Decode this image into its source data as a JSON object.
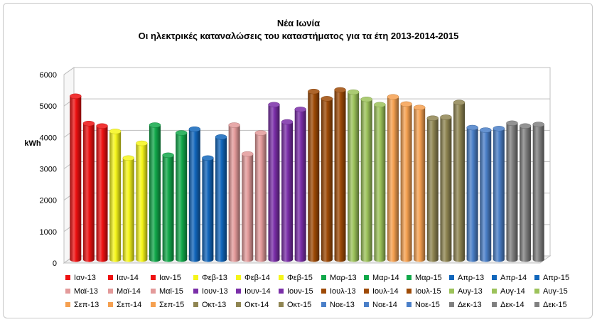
{
  "chart_data": {
    "type": "bar",
    "title": "Νέα Ιωνία",
    "subtitle": "Οι ηλεκτρικές καταναλώσεις του καταστήματος για τα έτη 2013-2014-2015",
    "ylabel": "kWh",
    "ylim": [
      0,
      6000
    ],
    "yticks": [
      "0",
      "1000",
      "2000",
      "3000",
      "4000",
      "5000",
      "6000"
    ],
    "grid": true,
    "legend_position": "bottom",
    "categories": [
      "Ιαν-13",
      "Ιαν-14",
      "Ιαν-15",
      "Φεβ-13",
      "Φεβ-14",
      "Φεβ-15",
      "Μαρ-13",
      "Μαρ-14",
      "Μαρ-15",
      "Απρ-13",
      "Απρ-14",
      "Απρ-15",
      "Μαϊ-13",
      "Μαϊ-14",
      "Μαϊ-15",
      "Ιουν-13",
      "Ιουν-14",
      "Ιουν-15",
      "Ιουλ-13",
      "Ιουλ-14",
      "Ιουλ-15",
      "Αυγ-13",
      "Αυγ-14",
      "Αυγ-15",
      "Σεπ-13",
      "Σεπ-14",
      "Σεπ-15",
      "Οκτ-13",
      "Οκτ-14",
      "Οκτ-15",
      "Νοε-13",
      "Νοε-14",
      "Νοε-15",
      "Δεκ-13",
      "Δεκ-14",
      "Δεκ-15"
    ],
    "values": [
      5200,
      4330,
      4250,
      4080,
      3230,
      3700,
      4280,
      3320,
      4030,
      4150,
      3230,
      3900,
      4280,
      3360,
      4030,
      4930,
      4380,
      4780,
      5350,
      5120,
      5400,
      5330,
      5100,
      4930,
      5180,
      4950,
      4840,
      4500,
      4530,
      5000,
      4200,
      4120,
      4170,
      4340,
      4250,
      4300
    ],
    "colors": [
      "#ee1111",
      "#ee1111",
      "#ee1111",
      "#f5f51a",
      "#f5f51a",
      "#f5f51a",
      "#11a84a",
      "#11a84a",
      "#11a84a",
      "#1166bb",
      "#1166bb",
      "#1166bb",
      "#e39a9a",
      "#e39a9a",
      "#e39a9a",
      "#7a2ea8",
      "#7a2ea8",
      "#7a2ea8",
      "#9e4a06",
      "#9e4a06",
      "#9e4a06",
      "#9cc25a",
      "#9cc25a",
      "#9cc25a",
      "#f5a050",
      "#f5a050",
      "#f5a050",
      "#8f8552",
      "#8f8552",
      "#8f8552",
      "#4a7fc8",
      "#4a7fc8",
      "#4a7fc8",
      "#808080",
      "#808080",
      "#808080"
    ]
  }
}
